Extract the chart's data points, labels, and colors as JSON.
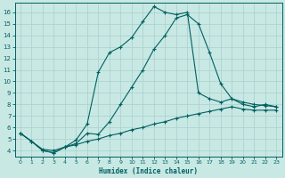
{
  "xlabel": "Humidex (Indice chaleur)",
  "bg_color": "#c8e8e4",
  "grid_color": "#a8d0cc",
  "line_color": "#006060",
  "xlim": [
    -0.5,
    23.5
  ],
  "ylim": [
    3.5,
    16.8
  ],
  "xticks": [
    0,
    1,
    2,
    3,
    4,
    5,
    6,
    7,
    8,
    9,
    10,
    11,
    12,
    13,
    14,
    15,
    16,
    17,
    18,
    19,
    20,
    21,
    22,
    23
  ],
  "yticks": [
    4,
    5,
    6,
    7,
    8,
    9,
    10,
    11,
    12,
    13,
    14,
    15,
    16
  ],
  "line1_x": [
    0,
    1,
    2,
    3,
    4,
    5,
    6,
    7,
    8,
    9,
    10,
    11,
    12,
    13,
    14,
    15,
    16,
    17,
    18,
    19,
    20,
    21,
    22,
    23
  ],
  "line1_y": [
    5.5,
    4.8,
    4.0,
    3.8,
    4.3,
    4.9,
    6.3,
    10.8,
    12.5,
    13.0,
    13.8,
    15.2,
    16.5,
    16.0,
    15.8,
    16.0,
    9.0,
    8.5,
    8.2,
    8.5,
    8.2,
    8.0,
    7.9,
    7.8
  ],
  "line2_x": [
    0,
    1,
    2,
    3,
    4,
    5,
    6,
    7,
    8,
    9,
    10,
    11,
    12,
    13,
    14,
    15,
    16,
    17,
    18,
    19,
    20,
    21,
    22,
    23
  ],
  "line2_y": [
    5.5,
    4.8,
    4.0,
    3.8,
    4.3,
    4.6,
    5.5,
    5.4,
    6.5,
    8.0,
    9.5,
    11.0,
    12.8,
    14.0,
    15.5,
    15.8,
    15.0,
    12.5,
    9.8,
    8.5,
    8.0,
    7.8,
    8.0,
    7.8
  ],
  "line3_x": [
    0,
    1,
    2,
    3,
    4,
    5,
    6,
    7,
    8,
    9,
    10,
    11,
    12,
    13,
    14,
    15,
    16,
    17,
    18,
    19,
    20,
    21,
    22,
    23
  ],
  "line3_y": [
    5.5,
    4.8,
    4.1,
    4.0,
    4.3,
    4.5,
    4.8,
    5.0,
    5.3,
    5.5,
    5.8,
    6.0,
    6.3,
    6.5,
    6.8,
    7.0,
    7.2,
    7.4,
    7.6,
    7.8,
    7.6,
    7.5,
    7.5,
    7.5
  ]
}
